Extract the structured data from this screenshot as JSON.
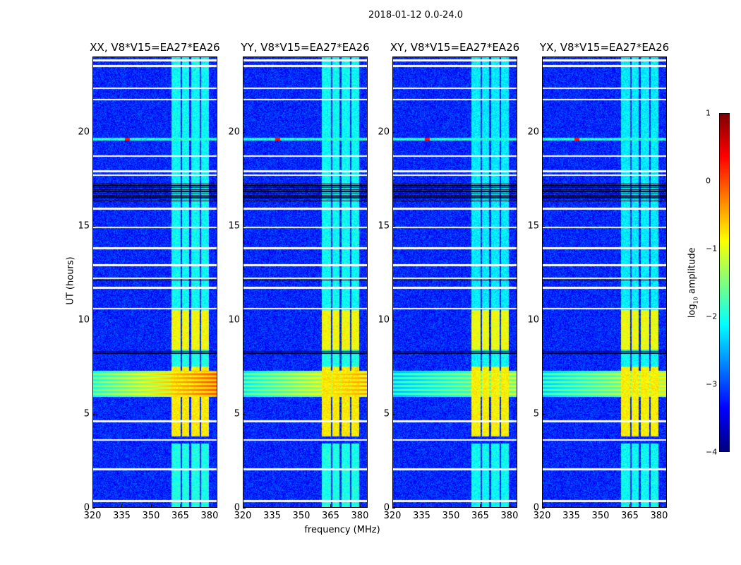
{
  "suptitle": "2018-01-12 0.0-24.0",
  "chart_data": {
    "type": "heatmap",
    "title": "2018-01-12 0.0-24.0",
    "xlabel": "frequency (MHz)",
    "ylabel": "UT (hours)",
    "xlim": [
      320,
      384
    ],
    "ylim": [
      0,
      24
    ],
    "xticks": [
      "320",
      "335",
      "350",
      "365",
      "380"
    ],
    "xtick_values": [
      320,
      335,
      350,
      365,
      380
    ],
    "yticks": [
      "0",
      "5",
      "10",
      "15",
      "20"
    ],
    "ytick_values": [
      0,
      5,
      10,
      15,
      20
    ],
    "colorbar": {
      "label": "log10 amplitude",
      "label_main": "log",
      "label_sub": "10",
      "label_rest": " amplitude",
      "clim": [
        -4,
        1
      ],
      "ticks": [
        "1",
        "0",
        "−1",
        "−2",
        "−3",
        "−4"
      ],
      "tick_values": [
        1,
        0,
        -1,
        -2,
        -3,
        -4
      ],
      "cmap": "jet"
    },
    "background_level": -3.2,
    "rfi_columns_mhz": [
      [
        360.5,
        365.2
      ],
      [
        365.9,
        369.5
      ],
      [
        370.6,
        374.9
      ],
      [
        375.7,
        379.6
      ]
    ],
    "rfi_levels_by_time": [
      {
        "t": [
          0,
          3.4
        ],
        "level": -2.0
      },
      {
        "t": [
          3.8,
          7.5
        ],
        "level": -0.8
      },
      {
        "t": [
          7.5,
          8.4
        ],
        "level": -2.0
      },
      {
        "t": [
          8.4,
          10.5
        ],
        "level": -0.9
      },
      {
        "t": [
          10.5,
          24
        ],
        "level": -2.1
      }
    ],
    "broadband_event": {
      "t": [
        5.9,
        7.3
      ],
      "level": -0.3
    },
    "narrow_line": {
      "t": 19.6,
      "level": -2.0,
      "hotspot_mhz": 338,
      "hotspot_level": 0.3
    },
    "flagged_hours": [
      0.35,
      2.05,
      3.6,
      4.6,
      10.6,
      11.7,
      12.2,
      12.9,
      13.8,
      14.9,
      15.9,
      17.7,
      17.9,
      18.7,
      21.7,
      22.3,
      23.5,
      23.8
    ],
    "dark_bands": [
      [
        16.3,
        17.3
      ],
      [
        8.2,
        8.4
      ],
      [
        12.1,
        12.2
      ]
    ],
    "panels": [
      {
        "title": "XX, V8*V15=EA27*EA26",
        "gain": 1.0,
        "event_gain": 1.0
      },
      {
        "title": "YY, V8*V15=EA27*EA26",
        "gain": 1.0,
        "event_gain": 0.85
      },
      {
        "title": "XY, V8*V15=EA27*EA26",
        "gain": 0.95,
        "event_gain": 0.6
      },
      {
        "title": "YX, V8*V15=EA27*EA26",
        "gain": 0.95,
        "event_gain": 0.7
      }
    ]
  }
}
